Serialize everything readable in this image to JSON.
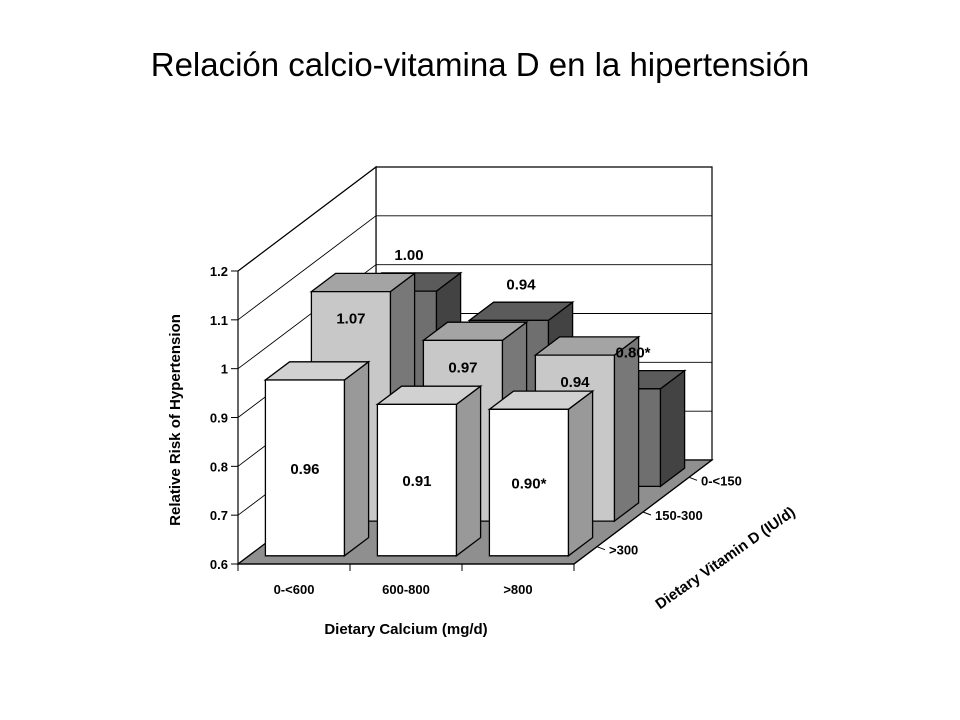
{
  "chart_data": {
    "type": "bar",
    "title": "Relación calcio-vitamina D en la hipertensión",
    "xlabel": "Dietary Calcium (mg/d)",
    "ylabel": "Relative Risk of Hypertension",
    "zlabel": "Dietary Vitamin D (IU/d)",
    "ylim": [
      0.6,
      1.2
    ],
    "yticks": [
      "0.6",
      "0.7",
      "0.8",
      "0.9",
      "1",
      "1.1",
      "1.2"
    ],
    "categories": [
      "0-<600",
      "600-800",
      ">800"
    ],
    "series": [
      {
        "name": "0-<150",
        "values": [
          1.0,
          0.94,
          0.8
        ],
        "labels": [
          "1.00",
          "0.94",
          "0.80*"
        ],
        "color": "#6f6f6f"
      },
      {
        "name": "150-300",
        "values": [
          1.07,
          0.97,
          0.94
        ],
        "labels": [
          "1.07",
          "0.97",
          "0.94"
        ],
        "color": "#c8c8c8"
      },
      {
        "name": ">300",
        "values": [
          0.96,
          0.91,
          0.9
        ],
        "labels": [
          "0.96",
          "0.91",
          "0.90*"
        ],
        "color": "#ffffff"
      }
    ]
  }
}
